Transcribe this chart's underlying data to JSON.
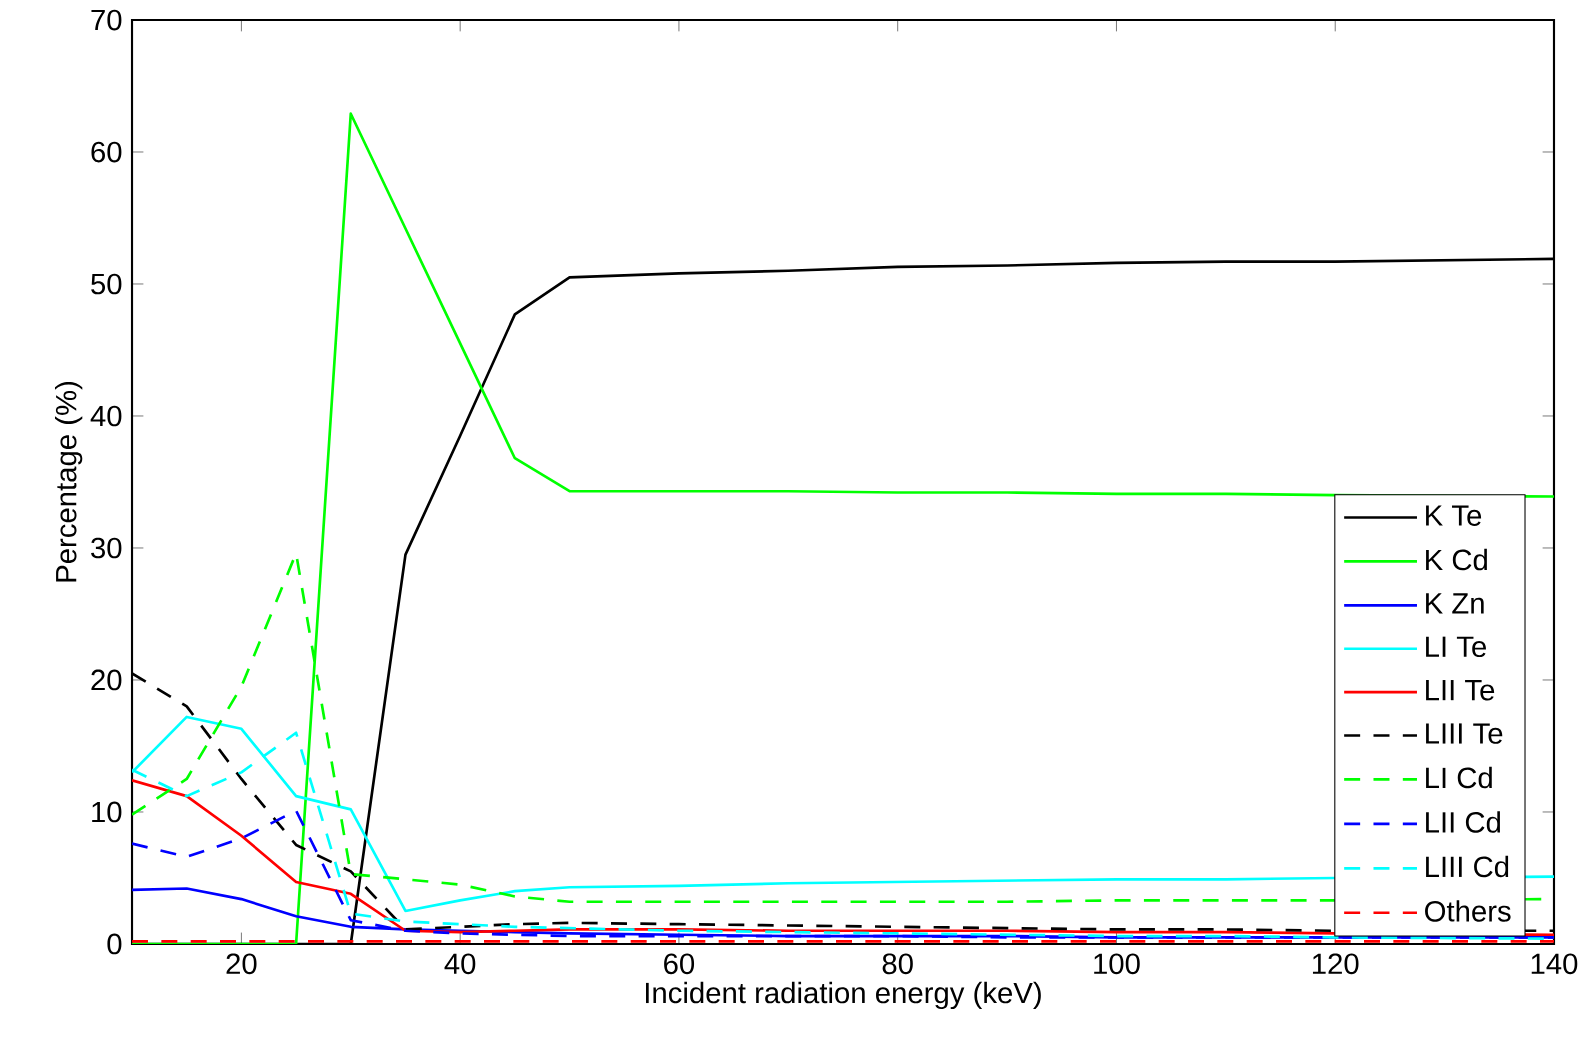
{
  "chart_data": {
    "type": "line",
    "xlabel": "Incident radiation energy (keV)",
    "ylabel": "Percentage (%)",
    "x": [
      10,
      15,
      20,
      25,
      30,
      35,
      40,
      45,
      50,
      60,
      70,
      80,
      90,
      100,
      110,
      120,
      140
    ],
    "xlim": [
      10,
      140
    ],
    "xticks": [
      20,
      40,
      60,
      80,
      100,
      120,
      140
    ],
    "ylim": [
      0,
      70
    ],
    "yticks": [
      0,
      10,
      20,
      30,
      40,
      50,
      60,
      70
    ],
    "grid": false,
    "legend": "bottom right",
    "marker": "none",
    "series": [
      {
        "name": "K Te",
        "color": "#000000",
        "line_style": "solid",
        "values": [
          0,
          0,
          0,
          0,
          0,
          29.5,
          38.5,
          47.7,
          50.5,
          50.8,
          51,
          51.3,
          51.4,
          51.6,
          51.7,
          51.7,
          51.9
        ]
      },
      {
        "name": "K Cd",
        "color": "#00ff00",
        "line_style": "solid",
        "values": [
          0,
          0,
          0,
          0,
          62.9,
          54.2,
          45.5,
          36.8,
          34.3,
          34.3,
          34.3,
          34.2,
          34.2,
          34.1,
          34.1,
          34,
          33.9
        ]
      },
      {
        "name": "K Zn",
        "color": "#0000ff",
        "line_style": "solid",
        "values": [
          4.1,
          4.2,
          3.4,
          2.1,
          1.3,
          1.1,
          1,
          0.9,
          0.8,
          0.7,
          0.6,
          0.6,
          0.6,
          0.5,
          0.5,
          0.5,
          0.5
        ]
      },
      {
        "name": "LI Te",
        "color": "#00ffff",
        "line_style": "solid",
        "values": [
          13,
          17.2,
          16.3,
          11.2,
          10.2,
          2.5,
          3.3,
          4,
          4.3,
          4.4,
          4.6,
          4.7,
          4.8,
          4.9,
          4.9,
          5,
          5.1
        ]
      },
      {
        "name": "LII Te",
        "color": "#ff0000",
        "line_style": "solid",
        "values": [
          12.4,
          11.2,
          8.2,
          4.7,
          3.8,
          1,
          0.9,
          1,
          1.1,
          1.1,
          1,
          1,
          1,
          0.9,
          0.9,
          0.8,
          0.7
        ]
      },
      {
        "name": "LIII Te",
        "color": "#000000",
        "line_style": "dashed",
        "values": [
          20.5,
          18,
          12.5,
          7.5,
          5.5,
          1.1,
          1.3,
          1.5,
          1.6,
          1.5,
          1.4,
          1.3,
          1.2,
          1.1,
          1.1,
          1,
          1
        ]
      },
      {
        "name": "LI Cd",
        "color": "#00ff00",
        "line_style": "dashed",
        "values": [
          9.8,
          12.5,
          19.5,
          29.6,
          5.3,
          4.9,
          4.5,
          3.6,
          3.2,
          3.2,
          3.2,
          3.2,
          3.2,
          3.3,
          3.3,
          3.3,
          3.4
        ]
      },
      {
        "name": "LII Cd",
        "color": "#0000ff",
        "line_style": "dashed",
        "values": [
          7.6,
          6.6,
          8,
          10.1,
          1.8,
          1,
          0.8,
          0.7,
          0.6,
          0.6,
          0.6,
          0.6,
          0.5,
          0.5,
          0.5,
          0.5,
          0.5
        ]
      },
      {
        "name": "LIII Cd",
        "color": "#00ffff",
        "line_style": "dashed",
        "values": [
          13.2,
          11.2,
          13,
          16,
          2.3,
          1.7,
          1.5,
          1.3,
          1.2,
          1,
          0.9,
          0.8,
          0.7,
          0.6,
          0.6,
          0.5,
          0.4
        ]
      },
      {
        "name": "Others",
        "color": "#ff0000",
        "line_style": "dashed",
        "values": [
          0.2,
          0.2,
          0.2,
          0.2,
          0.2,
          0.2,
          0.2,
          0.2,
          0.2,
          0.2,
          0.2,
          0.2,
          0.2,
          0.2,
          0.2,
          0.2,
          0.2
        ]
      }
    ]
  }
}
